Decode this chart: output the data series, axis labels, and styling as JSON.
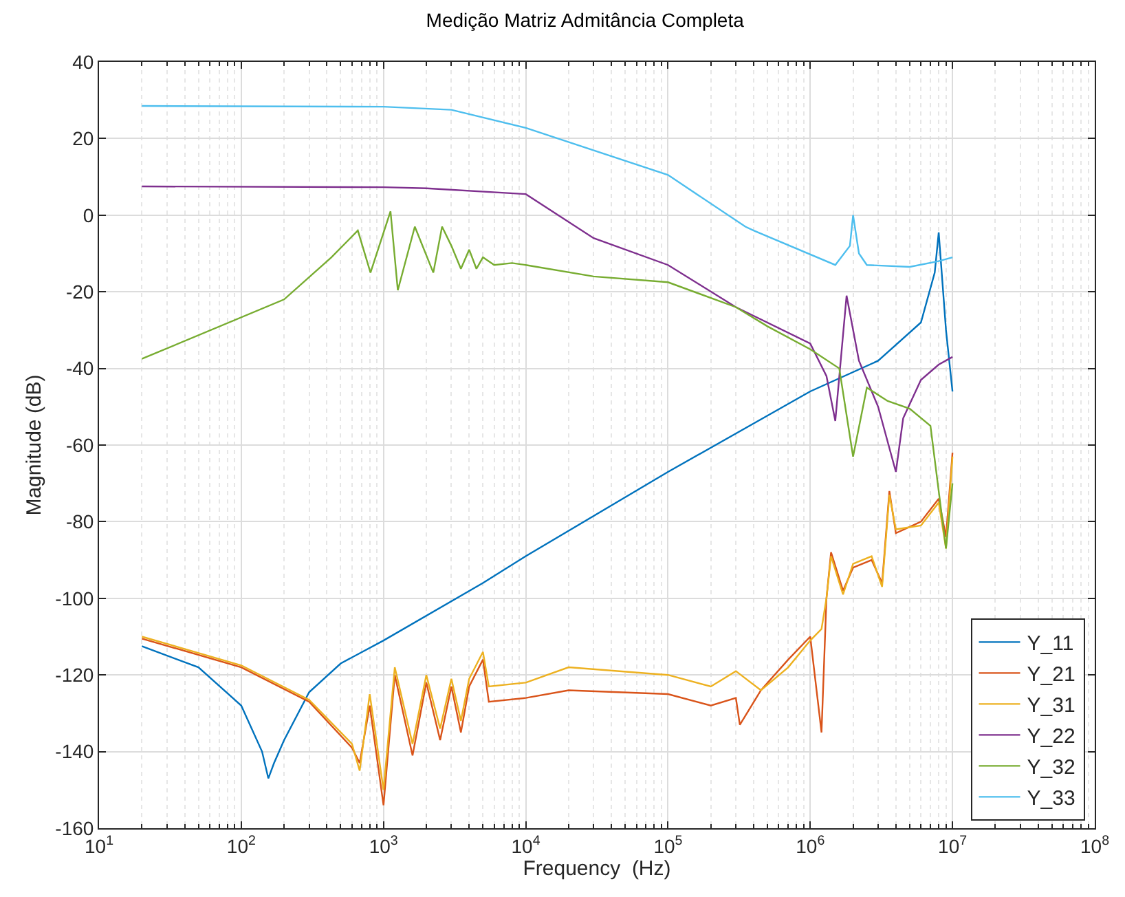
{
  "chart_data": {
    "type": "line",
    "title": "Medição Matriz Admitância Completa",
    "xlabel": "Frequency  (Hz)",
    "ylabel": "Magnitude (dB)",
    "log": "x",
    "grid": true,
    "legend": "bottom right",
    "line_style": "solid",
    "marker": "none",
    "xlim": [
      10,
      100000000
    ],
    "xticks": [
      {
        "value": 10,
        "label": "10$^{1}$"
      },
      {
        "value": 100,
        "label": "10$^{2}$"
      },
      {
        "value": 1000,
        "label": "10$^{3}$"
      },
      {
        "value": 10000,
        "label": "10$^{4}$"
      },
      {
        "value": 100000,
        "label": "10$^{5}$"
      },
      {
        "value": 1000000,
        "label": "10$^{6}$"
      },
      {
        "value": 10000000,
        "label": "10$^{7}$"
      },
      {
        "value": 100000000,
        "label": "10$^{8}$"
      }
    ],
    "ylim": [
      -160,
      40
    ],
    "yticks": [
      -160,
      -140,
      -120,
      -100,
      -80,
      -60,
      -40,
      -20,
      0,
      20,
      40
    ],
    "series": [
      {
        "name": "Y_11",
        "color": "#0072bd",
        "x": [
          20,
          50,
          100,
          140,
          155,
          170,
          200,
          300,
          500,
          1000,
          5000,
          10000,
          100000,
          1000000,
          3000000,
          6000000,
          7500000,
          8000000,
          9000000,
          10000000
        ],
        "values": [
          -112.5,
          -118,
          -128,
          -140,
          -147,
          -143,
          -137,
          -124.5,
          -117,
          -111,
          -96,
          -89,
          -67,
          -46,
          -38,
          -28,
          -15,
          -4.5,
          -30,
          -46
        ]
      },
      {
        "name": "Y_21",
        "color": "#d95319",
        "x": [
          20,
          100,
          300,
          600,
          680,
          800,
          1000,
          1200,
          1600,
          2000,
          2500,
          3000,
          3500,
          4000,
          5000,
          5500,
          10000,
          20000,
          100000,
          200000,
          300000,
          320000,
          450000,
          700000,
          1000000,
          1200000,
          1300000,
          1400000,
          1700000,
          2000000,
          2700000,
          3200000,
          3600000,
          4000000,
          6000000,
          8000000,
          9000000,
          10000000
        ],
        "values": [
          -110.5,
          -118,
          -127,
          -139,
          -143,
          -128,
          -154,
          -120,
          -141,
          -122,
          -137,
          -123,
          -135,
          -123,
          -116,
          -127,
          -126,
          -124,
          -125,
          -128,
          -126,
          -133,
          -124,
          -116,
          -110,
          -135,
          -100,
          -88,
          -98,
          -92,
          -90,
          -96,
          -72,
          -83,
          -80,
          -74,
          -84,
          -62
        ]
      },
      {
        "name": "Y_31",
        "color": "#edb120",
        "x": [
          20,
          100,
          300,
          600,
          680,
          800,
          1000,
          1200,
          1600,
          2000,
          2500,
          3000,
          3500,
          4000,
          5000,
          5500,
          10000,
          20000,
          100000,
          200000,
          300000,
          450000,
          700000,
          1000000,
          1200000,
          1300000,
          1400000,
          1700000,
          2000000,
          2700000,
          3200000,
          3600000,
          4000000,
          6000000,
          8000000,
          9000000,
          10000000
        ],
        "values": [
          -110,
          -117.5,
          -126.5,
          -138,
          -145,
          -125,
          -150,
          -118,
          -138,
          -120,
          -134,
          -121,
          -132,
          -121,
          -114,
          -123,
          -122,
          -118,
          -120,
          -123,
          -119,
          -124,
          -118,
          -111,
          -108,
          -100,
          -89,
          -99,
          -91,
          -89,
          -97,
          -73,
          -82,
          -81,
          -75,
          -87,
          -63
        ]
      },
      {
        "name": "Y_22",
        "color": "#7e2f8e",
        "x": [
          20,
          1000,
          2000,
          10000,
          30000,
          100000,
          300000,
          1000000,
          1300000,
          1500000,
          1800000,
          2200000,
          3000000,
          4000000,
          4500000,
          6000000,
          8000000,
          10000000
        ],
        "values": [
          7.5,
          7.3,
          7,
          5.5,
          -6,
          -13,
          -24,
          -33.5,
          -42,
          -53.7,
          -21,
          -38,
          -50,
          -67,
          -53,
          -43,
          -39,
          -37
        ]
      },
      {
        "name": "Y_32",
        "color": "#77ac30",
        "x": [
          20,
          200,
          430,
          660,
          810,
          1120,
          1260,
          1660,
          2240,
          2580,
          3000,
          3500,
          4000,
          4500,
          5000,
          6000,
          8000,
          10000,
          30000,
          100000,
          300000,
          500000,
          1000000,
          1600000,
          2000000,
          2500000,
          3500000,
          5000000,
          7000000,
          9000000,
          10000000
        ],
        "values": [
          -37.5,
          -22,
          -11,
          -4,
          -15,
          1,
          -19.6,
          -3,
          -15,
          -3,
          -8,
          -14,
          -9,
          -14,
          -11,
          -13,
          -12.5,
          -13,
          -16,
          -17.5,
          -24,
          -29,
          -35,
          -40,
          -63,
          -45,
          -48.5,
          -50.5,
          -55,
          -87,
          -70
        ]
      },
      {
        "name": "Y_33",
        "color": "#4dbeee",
        "x": [
          20,
          1000,
          3000,
          10000,
          100000,
          350000,
          400000,
          1500000,
          1900000,
          2000000,
          2200000,
          2500000,
          5000000,
          8000000,
          10000000
        ],
        "values": [
          28.5,
          28.3,
          27.5,
          22.8,
          10.5,
          -3,
          -4,
          -13,
          -8,
          0,
          -10,
          -13,
          -13.5,
          -12,
          -11
        ]
      }
    ]
  }
}
